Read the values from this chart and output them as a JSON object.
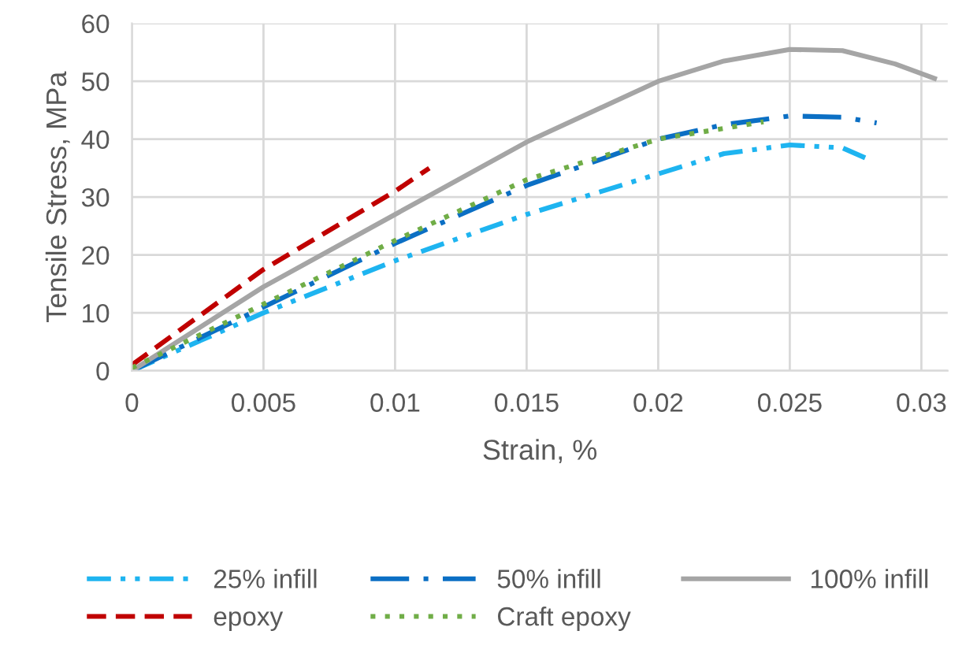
{
  "chart_data": {
    "type": "line",
    "xlabel": "Strain, %",
    "ylabel": "Tensile Stress, MPa",
    "xlim": [
      0,
      0.031
    ],
    "ylim": [
      0,
      60
    ],
    "xticks": [
      0,
      0.005,
      0.01,
      0.015,
      0.02,
      0.025,
      0.03
    ],
    "yticks": [
      0,
      10,
      20,
      30,
      40,
      50,
      60
    ],
    "grid": true,
    "legend": "bottom",
    "marker": "none",
    "series": [
      {
        "name": "25% infill",
        "color": "#1eb4f0",
        "line_style": "dashdotdot",
        "x": [
          0,
          0.005,
          0.01,
          0.015,
          0.02,
          0.0225,
          0.025,
          0.027,
          0.028
        ],
        "values": [
          0,
          10,
          19,
          27,
          34,
          37.5,
          39,
          38.5,
          36.5
        ]
      },
      {
        "name": "50% infill",
        "color": "#0b6fc4",
        "line_style": "dashdot",
        "x": [
          0,
          0.005,
          0.01,
          0.015,
          0.02,
          0.0225,
          0.025,
          0.027,
          0.0283
        ],
        "values": [
          0,
          11,
          22,
          32,
          40,
          42.5,
          44,
          43.8,
          42.8
        ]
      },
      {
        "name": "100% infill",
        "color": "#a5a5a5",
        "line_style": "solid",
        "x": [
          0,
          0.005,
          0.01,
          0.015,
          0.02,
          0.0225,
          0.025,
          0.027,
          0.029,
          0.0305
        ],
        "values": [
          0,
          14.5,
          27,
          39.5,
          50,
          53.5,
          55.5,
          55.3,
          53,
          50.5
        ]
      },
      {
        "name": "epoxy",
        "color": "#c00000",
        "line_style": "dashed",
        "x": [
          0,
          0.005,
          0.01,
          0.0113
        ],
        "values": [
          1,
          17.5,
          31,
          35
        ]
      },
      {
        "name": "Craft epoxy",
        "color": "#70ad47",
        "line_style": "dotted",
        "x": [
          0,
          0.005,
          0.01,
          0.015,
          0.02,
          0.024
        ],
        "values": [
          0.5,
          11.5,
          22.5,
          33,
          40,
          43
        ]
      }
    ]
  }
}
